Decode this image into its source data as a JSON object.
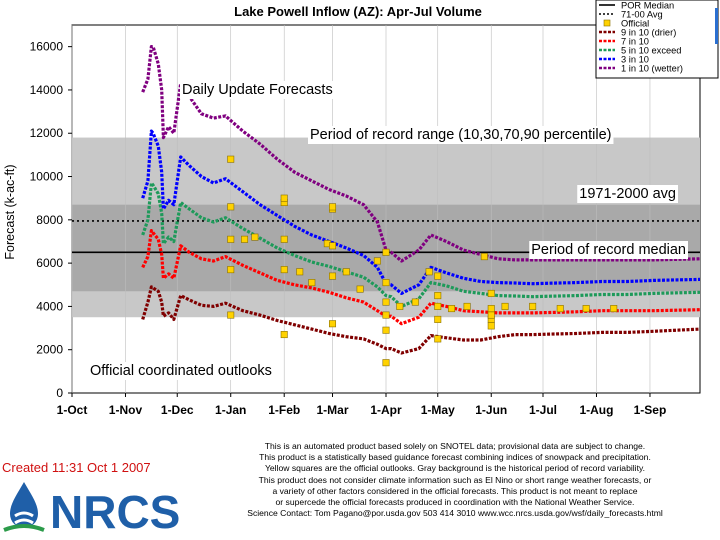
{
  "chart_data": {
    "type": "line",
    "title": "Lake Powell Inflow (AZ): Apr-Jul Volume",
    "ylabel": "Forecast (k-ac-ft)",
    "xlabel": "",
    "ylim": [
      0,
      17000
    ],
    "yticks": [
      0,
      2000,
      4000,
      6000,
      8000,
      10000,
      12000,
      14000,
      16000
    ],
    "xlim": [
      "2006-10-01",
      "2007-09-30"
    ],
    "xticks": [
      {
        "date": "2006-10-01",
        "label": "1-Oct"
      },
      {
        "date": "2006-11-01",
        "label": "1-Nov"
      },
      {
        "date": "2006-12-01",
        "label": "1-Dec"
      },
      {
        "date": "2007-01-01",
        "label": "1-Jan"
      },
      {
        "date": "2007-02-01",
        "label": "1-Feb"
      },
      {
        "date": "2007-03-01",
        "label": "1-Mar"
      },
      {
        "date": "2007-04-01",
        "label": "1-Apr"
      },
      {
        "date": "2007-05-01",
        "label": "1-May"
      },
      {
        "date": "2007-06-01",
        "label": "1-Jun"
      },
      {
        "date": "2007-07-01",
        "label": "1-Jul"
      },
      {
        "date": "2007-08-01",
        "label": "1-Aug"
      },
      {
        "date": "2007-09-01",
        "label": "1-Sep"
      }
    ],
    "background_bands": [
      {
        "from": 3500,
        "to": 11800,
        "color": "#c8c8c8"
      },
      {
        "from": 4700,
        "to": 8700,
        "color": "#a9a9a9"
      }
    ],
    "reference_lines": [
      {
        "name": "POR Median",
        "value": 6500,
        "style": "solid",
        "color": "#000000"
      },
      {
        "name": "71-00 Avg",
        "value": 7950,
        "style": "dotted",
        "color": "#000000"
      }
    ],
    "annotations": [
      "Daily Update Forecasts",
      "Period of record range (10,30,70,90 percentile)",
      "1971-2000 avg",
      "Period of record median",
      "Official coordinated outlooks"
    ],
    "legend": {
      "placement": "top-right",
      "entries": [
        {
          "label": "POR Median",
          "color": "#000000",
          "style": "solid"
        },
        {
          "label": "71-00 Avg",
          "color": "#000000",
          "style": "dotted"
        },
        {
          "label": "Official",
          "color": "#ffd200",
          "style": "square"
        },
        {
          "label": "9 in 10 (drier)",
          "color": "#800000",
          "style": "line"
        },
        {
          "label": "7 in 10",
          "color": "#ff0000",
          "style": "line"
        },
        {
          "label": "5 in 10 exceed",
          "color": "#1e9a5a",
          "style": "line"
        },
        {
          "label": "3 in 10",
          "color": "#0000ff",
          "style": "line"
        },
        {
          "label": "1 in 10 (wetter)",
          "color": "#800080",
          "style": "line"
        }
      ]
    },
    "grid": true,
    "series": [
      {
        "name": "9 in 10 (drier)",
        "color": "#800000",
        "x": [
          "2006-11-11",
          "2006-11-14",
          "2006-11-16",
          "2006-11-17",
          "2006-11-20",
          "2006-11-22",
          "2006-11-23",
          "2006-11-26",
          "2006-11-29",
          "2006-12-03",
          "2006-12-08",
          "2006-12-15",
          "2006-12-22",
          "2006-12-29",
          "2007-01-08",
          "2007-01-18",
          "2007-01-28",
          "2007-02-07",
          "2007-02-17",
          "2007-02-27",
          "2007-03-09",
          "2007-03-19",
          "2007-03-27",
          "2007-04-01",
          "2007-04-04",
          "2007-04-10",
          "2007-04-20",
          "2007-04-27",
          "2007-05-06",
          "2007-05-16",
          "2007-05-26",
          "2007-06-05",
          "2007-06-15",
          "2007-06-25",
          "2007-07-05",
          "2007-07-20",
          "2007-08-04",
          "2007-08-19",
          "2007-09-03",
          "2007-09-30"
        ],
        "values": [
          3400,
          4200,
          4900,
          4850,
          4700,
          4200,
          3550,
          3700,
          3400,
          4500,
          4300,
          4050,
          4000,
          4150,
          3800,
          3600,
          3350,
          3150,
          2950,
          2750,
          2600,
          2500,
          2250,
          2050,
          2050,
          1850,
          2050,
          2650,
          2550,
          2450,
          2450,
          2600,
          2700,
          2700,
          2720,
          2750,
          2800,
          2800,
          2850,
          2950
        ]
      },
      {
        "name": "7 in 10",
        "color": "#ff0000",
        "x": [
          "2006-11-11",
          "2006-11-14",
          "2006-11-16",
          "2006-11-17",
          "2006-11-20",
          "2006-11-22",
          "2006-11-23",
          "2006-11-26",
          "2006-11-29",
          "2006-12-03",
          "2006-12-08",
          "2006-12-15",
          "2006-12-22",
          "2006-12-29",
          "2007-01-08",
          "2007-01-18",
          "2007-01-28",
          "2007-02-07",
          "2007-02-17",
          "2007-02-27",
          "2007-03-09",
          "2007-03-19",
          "2007-03-27",
          "2007-04-01",
          "2007-04-04",
          "2007-04-10",
          "2007-04-20",
          "2007-04-27",
          "2007-05-06",
          "2007-05-16",
          "2007-05-26",
          "2007-06-05",
          "2007-06-15",
          "2007-06-25",
          "2007-07-05",
          "2007-07-20",
          "2007-08-04",
          "2007-08-19",
          "2007-09-03",
          "2007-09-30"
        ],
        "values": [
          5800,
          6300,
          7500,
          7400,
          7100,
          6400,
          5300,
          5500,
          5300,
          6800,
          6500,
          6200,
          6100,
          6300,
          5900,
          5550,
          5200,
          5000,
          4850,
          4650,
          4400,
          4200,
          3800,
          3550,
          3550,
          3200,
          3500,
          4150,
          4000,
          3800,
          3750,
          3700,
          3700,
          3700,
          3720,
          3750,
          3800,
          3800,
          3800,
          3850
        ]
      },
      {
        "name": "5 in 10 exceed",
        "color": "#1e9a5a",
        "x": [
          "2006-11-11",
          "2006-11-14",
          "2006-11-16",
          "2006-11-17",
          "2006-11-20",
          "2006-11-22",
          "2006-11-23",
          "2006-11-26",
          "2006-11-29",
          "2006-12-03",
          "2006-12-08",
          "2006-12-15",
          "2006-12-22",
          "2006-12-29",
          "2007-01-08",
          "2007-01-18",
          "2007-01-28",
          "2007-02-07",
          "2007-02-17",
          "2007-02-27",
          "2007-03-09",
          "2007-03-19",
          "2007-03-27",
          "2007-04-01",
          "2007-04-04",
          "2007-04-10",
          "2007-04-20",
          "2007-04-27",
          "2007-05-06",
          "2007-05-16",
          "2007-05-26",
          "2007-06-05",
          "2007-06-15",
          "2007-06-25",
          "2007-07-05",
          "2007-07-20",
          "2007-08-04",
          "2007-08-19",
          "2007-09-03",
          "2007-09-30"
        ],
        "values": [
          7300,
          8000,
          9700,
          9600,
          9200,
          8300,
          6900,
          7200,
          7000,
          8800,
          8500,
          8100,
          7900,
          8100,
          7600,
          7150,
          6700,
          6350,
          6050,
          5850,
          5600,
          5350,
          4900,
          4500,
          4450,
          4000,
          4350,
          5100,
          4950,
          4700,
          4600,
          4500,
          4480,
          4450,
          4470,
          4500,
          4550,
          4550,
          4600,
          4650
        ]
      },
      {
        "name": "3 in 10",
        "color": "#0000ff",
        "x": [
          "2006-11-11",
          "2006-11-14",
          "2006-11-16",
          "2006-11-17",
          "2006-11-20",
          "2006-11-22",
          "2006-11-23",
          "2006-11-26",
          "2006-11-29",
          "2006-12-03",
          "2006-12-08",
          "2006-12-15",
          "2006-12-22",
          "2006-12-29",
          "2007-01-08",
          "2007-01-18",
          "2007-01-28",
          "2007-02-07",
          "2007-02-17",
          "2007-02-27",
          "2007-03-09",
          "2007-03-19",
          "2007-03-27",
          "2007-04-01",
          "2007-04-04",
          "2007-04-10",
          "2007-04-20",
          "2007-04-27",
          "2007-05-06",
          "2007-05-16",
          "2007-05-26",
          "2007-06-05",
          "2007-06-15",
          "2007-06-25",
          "2007-07-05",
          "2007-07-20",
          "2007-08-04",
          "2007-08-19",
          "2007-09-03",
          "2007-09-30"
        ],
        "values": [
          9000,
          9800,
          12100,
          12000,
          11400,
          10200,
          8500,
          8900,
          8700,
          10900,
          10500,
          10000,
          9700,
          9900,
          9300,
          8700,
          8200,
          7700,
          7300,
          7000,
          6700,
          6350,
          5800,
          5050,
          5000,
          4600,
          5000,
          5800,
          5550,
          5300,
          5150,
          5100,
          5080,
          5050,
          5070,
          5100,
          5150,
          5150,
          5200,
          5250
        ]
      },
      {
        "name": "1 in 10 (wetter)",
        "color": "#800080",
        "x": [
          "2006-11-11",
          "2006-11-14",
          "2006-11-16",
          "2006-11-17",
          "2006-11-20",
          "2006-11-22",
          "2006-11-23",
          "2006-11-26",
          "2006-11-29",
          "2006-12-03",
          "2006-12-08",
          "2006-12-15",
          "2006-12-22",
          "2006-12-29",
          "2007-01-08",
          "2007-01-18",
          "2007-01-28",
          "2007-02-07",
          "2007-02-17",
          "2007-02-27",
          "2007-03-09",
          "2007-03-19",
          "2007-03-27",
          "2007-04-01",
          "2007-04-04",
          "2007-04-10",
          "2007-04-20",
          "2007-04-27",
          "2007-05-06",
          "2007-05-16",
          "2007-05-26",
          "2007-06-05",
          "2007-06-15",
          "2007-06-25",
          "2007-07-05",
          "2007-07-20",
          "2007-08-04",
          "2007-08-19",
          "2007-09-03",
          "2007-09-30"
        ],
        "values": [
          13900,
          14500,
          16000,
          16000,
          15200,
          14000,
          11800,
          12300,
          12000,
          14300,
          13700,
          12900,
          12700,
          12800,
          12100,
          11500,
          10800,
          10200,
          9800,
          9400,
          9100,
          8700,
          7900,
          6600,
          6500,
          6100,
          6600,
          7300,
          7000,
          6600,
          6400,
          6200,
          6150,
          6150,
          6150,
          6150,
          6150,
          6150,
          6150,
          6200
        ]
      }
    ],
    "official": {
      "name": "Official",
      "color": "#ffd200",
      "x": [
        "2007-01-01",
        "2007-01-01",
        "2007-01-01",
        "2007-01-01",
        "2007-01-01",
        "2007-01-09",
        "2007-01-15",
        "2007-02-01",
        "2007-02-01",
        "2007-02-01",
        "2007-02-01",
        "2007-02-01",
        "2007-02-10",
        "2007-02-17",
        "2007-02-26",
        "2007-03-01",
        "2007-03-01",
        "2007-03-01",
        "2007-03-01",
        "2007-03-01",
        "2007-03-09",
        "2007-03-17",
        "2007-03-27",
        "2007-04-01",
        "2007-04-01",
        "2007-04-01",
        "2007-04-01",
        "2007-04-01",
        "2007-04-01",
        "2007-04-09",
        "2007-04-18",
        "2007-04-26",
        "2007-05-01",
        "2007-05-01",
        "2007-05-01",
        "2007-05-01",
        "2007-05-01",
        "2007-05-09",
        "2007-05-18",
        "2007-05-28",
        "2007-06-01",
        "2007-06-01",
        "2007-06-01",
        "2007-06-01",
        "2007-06-01",
        "2007-06-09",
        "2007-06-25",
        "2007-07-11",
        "2007-07-26",
        "2007-08-11"
      ],
      "values": [
        3600,
        5700,
        7100,
        8600,
        10800,
        7100,
        7200,
        2700,
        5700,
        7100,
        8800,
        9000,
        5600,
        5100,
        6900,
        3200,
        5400,
        6800,
        8500,
        8600,
        5600,
        4800,
        6100,
        1400,
        2900,
        3600,
        4200,
        5100,
        6500,
        4000,
        4200,
        5600,
        2500,
        3400,
        4000,
        4500,
        5400,
        3900,
        4000,
        6300,
        3100,
        3400,
        3600,
        3900,
        4600,
        4000,
        4000,
        3900,
        3900,
        3900
      ]
    },
    "footer": {
      "note_lines": [
        "This is an automated product based solely on SNOTEL data; provisional data are subject to change.",
        "This product is a statistically based guidance forecast combining indices of snowpack and precipitation.",
        "Yellow squares are the official outlooks. Gray background is the historical period of record variability.",
        "This product does not consider climate information such as El Nino or short range weather forecasts, or",
        "a variety of other factors considered in the official forecasts. This product is not meant to replace",
        "or supercede the official forecasts produced in coordination with the National Weather Service.",
        "Science Contact: Tom Pagano@por.usda.gov 503 414 3010  www.wcc.nrcs.usda.gov/wsf/daily_forecasts.html"
      ],
      "created": "Created 11:31 Oct 1 2007",
      "logo_text": "NRCS"
    }
  }
}
